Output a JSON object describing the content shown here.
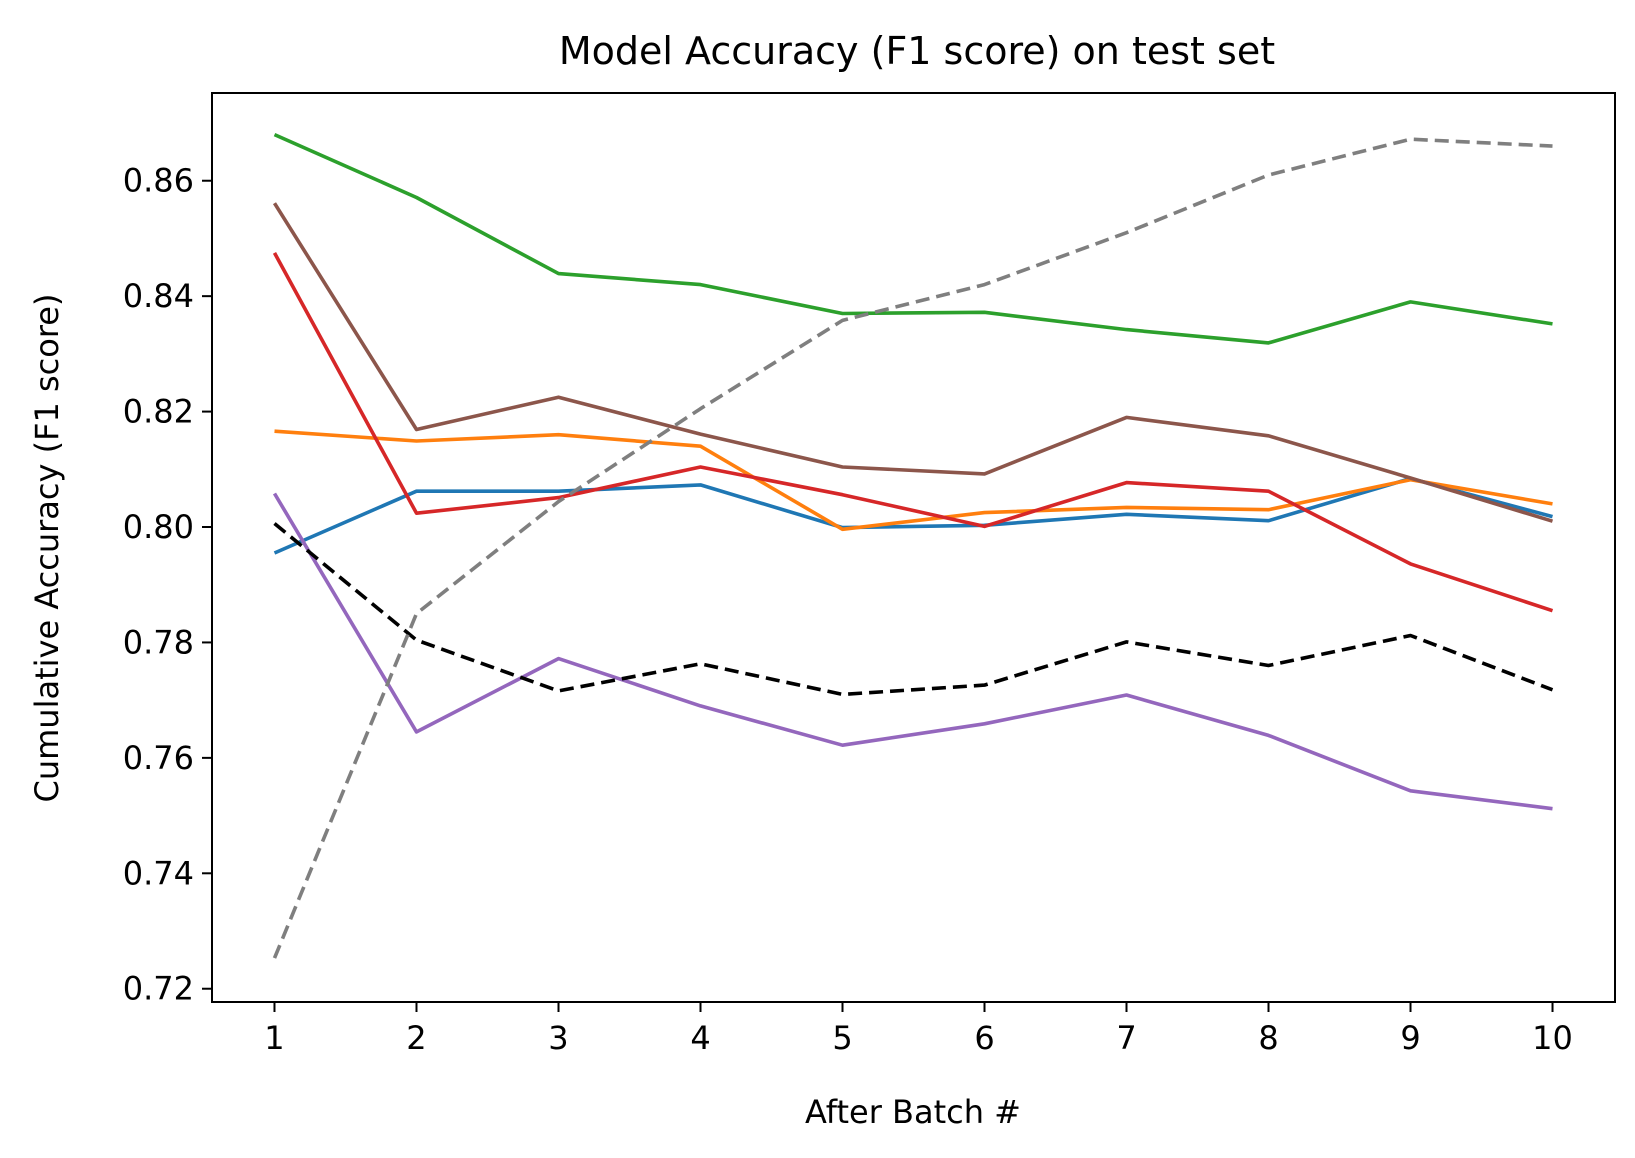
{
  "chart_data": {
    "type": "line",
    "title": "Model Accuracy (F1 score) on test set",
    "xlabel": "After Batch #",
    "ylabel": "Cumulative Accuracy (F1 score)",
    "x": [
      1,
      2,
      3,
      4,
      5,
      6,
      7,
      8,
      9,
      10
    ],
    "xticks": [
      "1",
      "2",
      "3",
      "4",
      "5",
      "6",
      "7",
      "8",
      "9",
      "10"
    ],
    "yticks": [
      "0.72",
      "0.74",
      "0.76",
      "0.78",
      "0.80",
      "0.82",
      "0.84",
      "0.86"
    ],
    "xlim": [
      0.56,
      10.44
    ],
    "ylim": [
      0.7177,
      0.8752
    ],
    "grid": false,
    "series": [
      {
        "color": "#1f77b4",
        "dash": "solid",
        "values": [
          0.7955,
          0.8062,
          0.8062,
          0.8073,
          0.7999,
          0.8003,
          0.8022,
          0.8011,
          0.8084,
          0.8018
        ]
      },
      {
        "color": "#ff7f0e",
        "dash": "solid",
        "values": [
          0.8166,
          0.8149,
          0.816,
          0.814,
          0.7996,
          0.8025,
          0.8034,
          0.803,
          0.8082,
          0.804
        ]
      },
      {
        "color": "#2ca02c",
        "dash": "solid",
        "values": [
          0.868,
          0.8571,
          0.8439,
          0.842,
          0.837,
          0.8372,
          0.8342,
          0.8319,
          0.839,
          0.8352
        ]
      },
      {
        "color": "#d62728",
        "dash": "solid",
        "values": [
          0.8475,
          0.8024,
          0.8051,
          0.8104,
          0.8056,
          0.8001,
          0.8077,
          0.8062,
          0.7936,
          0.7855
        ]
      },
      {
        "color": "#9467bd",
        "dash": "solid",
        "values": [
          0.8058,
          0.7645,
          0.7772,
          0.769,
          0.7622,
          0.7659,
          0.7709,
          0.7639,
          0.7543,
          0.7512
        ]
      },
      {
        "color": "#8c564b",
        "dash": "solid",
        "values": [
          0.8561,
          0.8169,
          0.8225,
          0.8161,
          0.8104,
          0.8092,
          0.819,
          0.8158,
          0.8085,
          0.801
        ]
      },
      {
        "color": "#000000",
        "dash": "dashed",
        "values": [
          0.8006,
          0.7804,
          0.7716,
          0.7763,
          0.771,
          0.7726,
          0.7801,
          0.776,
          0.7812,
          0.7718
        ]
      },
      {
        "color": "#7f7f7f",
        "dash": "dashed",
        "values": [
          0.7253,
          0.785,
          0.8044,
          0.8205,
          0.8358,
          0.842,
          0.851,
          0.861,
          0.8672,
          0.866
        ]
      }
    ]
  }
}
